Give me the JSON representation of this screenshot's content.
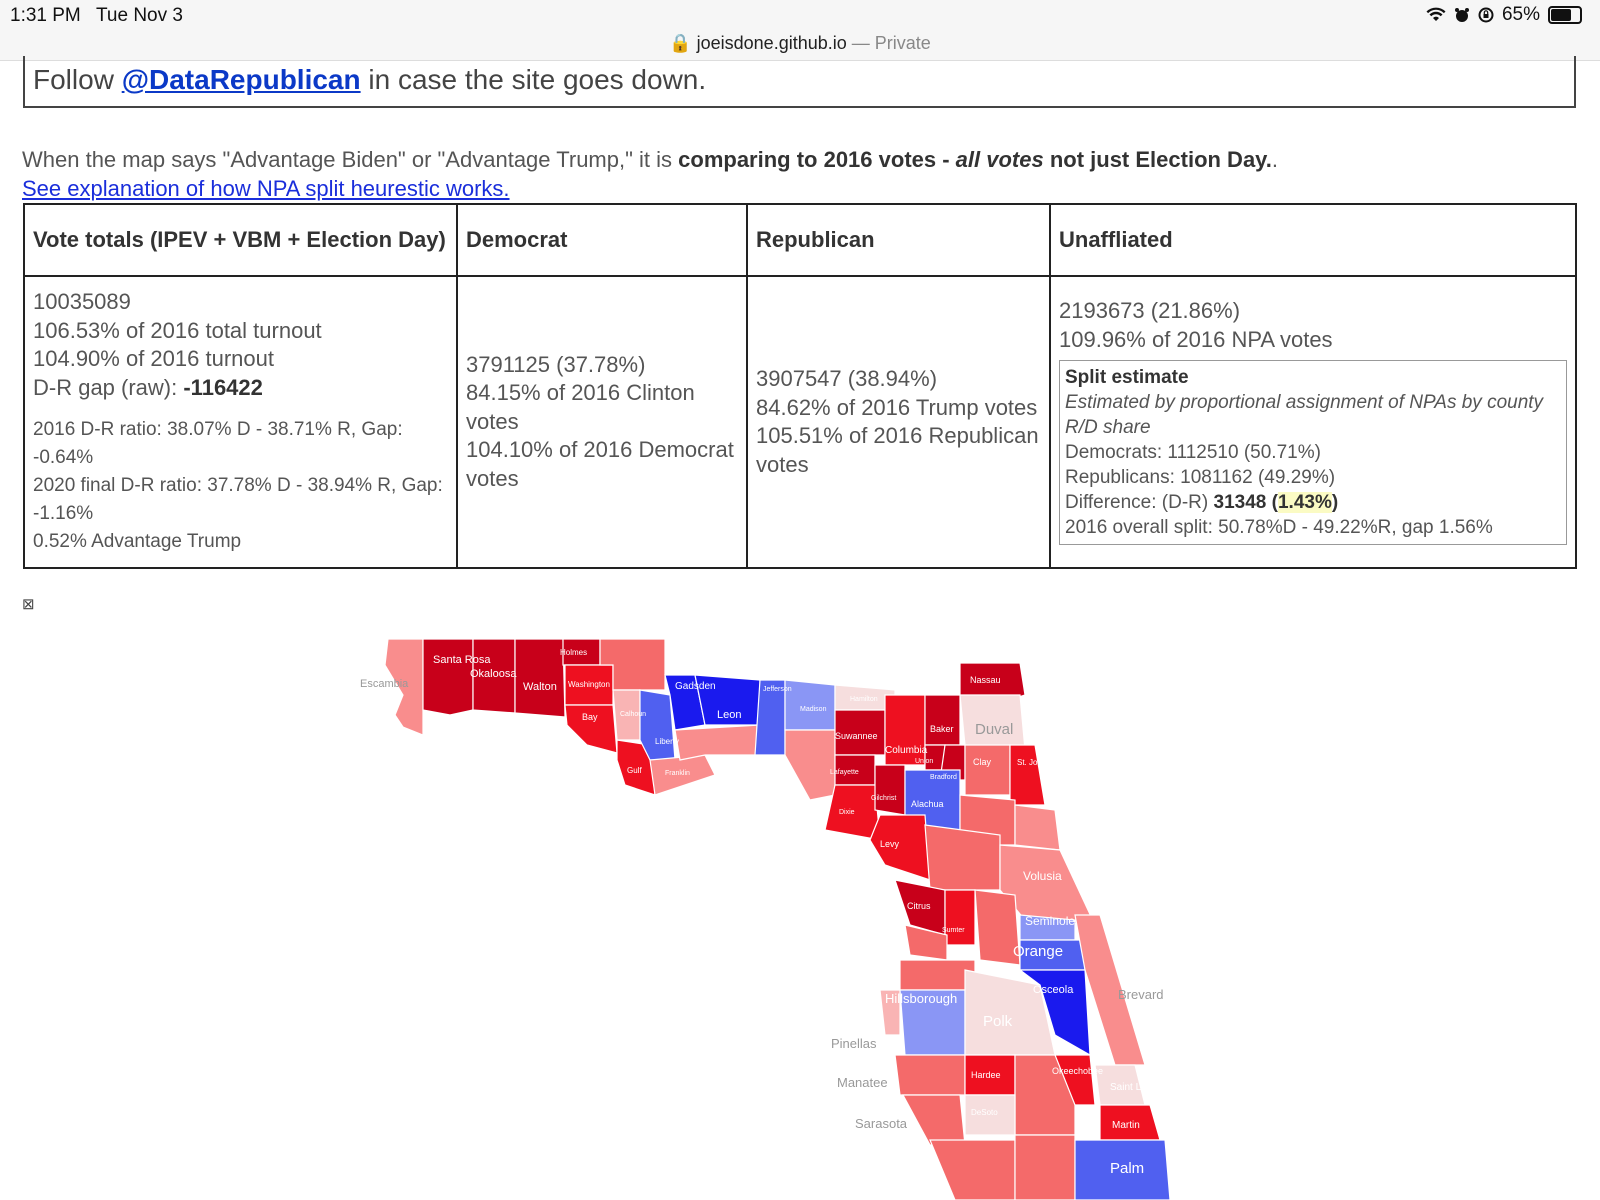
{
  "status_bar": {
    "time": "1:31 PM",
    "date": "Tue Nov 3",
    "battery": "65%",
    "battery_level": 0.65
  },
  "browser": {
    "url": "joeisdone.github.io",
    "separator": " — ",
    "mode": "Private"
  },
  "follow": {
    "prefix": "Follow ",
    "handle": "@DataRepublican",
    "suffix": " in case the site goes down."
  },
  "note": {
    "text1": "When the map says \"Advantage Biden\" or \"Advantage Trump,\" it is ",
    "bold1": "comparing to 2016 votes - ",
    "bold_italic": "all votes",
    "bold2": " not just Election Day.",
    "end": ".",
    "link": "See explanation of how NPA split heurestic works."
  },
  "table": {
    "headers": [
      "Vote totals (IPEV + VBM + Election Day)",
      "Democrat",
      "Republican",
      "Unaffliated"
    ],
    "totals": {
      "total": "10035089",
      "turnout_total": "106.53% of 2016 total turnout",
      "turnout": "104.90% of 2016 turnout",
      "gap_label": "D-R gap (raw): ",
      "gap_value": "-116422",
      "ratio_2016": "2016 D-R ratio: 38.07% D - 38.71% R, Gap: -0.64%",
      "ratio_2020": "2020 final D-R ratio: 37.78% D - 38.94% R, Gap: -1.16%",
      "advantage": "0.52% Advantage Trump"
    },
    "democrat": {
      "votes": "3791125 (37.78%)",
      "pct_candidate": "84.15% of 2016 Clinton votes",
      "pct_party": "104.10% of 2016 Democrat votes"
    },
    "republican": {
      "votes": "3907547 (38.94%)",
      "pct_candidate": "84.62% of 2016 Trump votes",
      "pct_party": "105.51% of 2016 Republican votes"
    },
    "unaffiliated": {
      "votes": "2193673 (21.86%)",
      "pct": "109.96% of 2016 NPA votes",
      "split_title": "Split estimate",
      "split_sub": "Estimated by proportional assignment of NPAs by county R/D share",
      "democrats": "Democrats: 1112510 (50.71%)",
      "republicans": "Republicans: 1081162 (49.29%)",
      "diff_label": "Difference: (D-R) ",
      "diff_value": "31348",
      "diff_pct_open": " (",
      "diff_pct": "1.43%",
      "diff_pct_close": ")",
      "overall": "2016 overall split: 50.78%D - 49.22%R, gap 1.56%"
    }
  },
  "broken_image_glyph": "⊠",
  "map": {
    "colors": {
      "dark_red": "#c8001a",
      "red": "#ee1020",
      "light_red": "#f46a6a",
      "pale_red": "#f9b4b4",
      "blue": "#1a1aee",
      "mid_blue": "#5060f0",
      "light_blue": "#8a96f5",
      "pale": "#f6dede"
    },
    "labels": {
      "escambia": "Escambia",
      "santa_rosa": "Santa Rosa",
      "okaloosa": "Okaloosa",
      "walton": "Walton",
      "holmes": "Holmes",
      "washington": "Washington",
      "bay": "Bay",
      "calhoun": "Calhoun",
      "gulf": "Gulf",
      "liberty": "Liberty",
      "franklin": "Franklin",
      "gadsden": "Gadsden",
      "leon": "Leon",
      "jefferson": "Jefferson",
      "madison": "Madison",
      "hamilton": "Hamilton",
      "nassau": "Nassau",
      "duval": "Duval",
      "baker": "Baker",
      "columbia": "Columbia",
      "suwannee": "Suwannee",
      "union": "Union",
      "bradford": "Bradford",
      "clay": "Clay",
      "st_johns": "St. Johns",
      "lafayette": "Lafayette",
      "alachua": "Alachua",
      "dixie": "Dixie",
      "gilchrist": "Gilchrist",
      "levy": "Levy",
      "citrus": "Citrus",
      "sumter": "Sumter",
      "volusia": "Volusia",
      "seminole": "Seminole",
      "orange": "Orange",
      "osceola": "Osceola",
      "brevard": "Brevard",
      "hillsborough": "Hillsborough",
      "polk": "Polk",
      "pinellas": "Pinellas",
      "manatee": "Manatee",
      "sarasota": "Sarasota",
      "hardee": "Hardee",
      "desoto": "DeSoto",
      "okeechobee": "Okeechobee",
      "st_lucie": "Saint Lucie",
      "martin": "Martin",
      "palm": "Palm"
    }
  }
}
